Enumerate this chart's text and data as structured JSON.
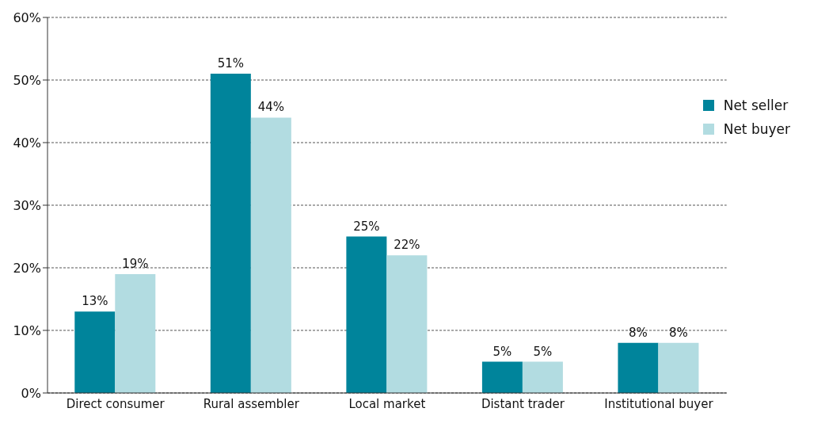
{
  "chart_data": {
    "type": "bar",
    "categories": [
      "Direct consumer",
      "Rural assembler",
      "Local market",
      "Distant trader",
      "Institutional buyer"
    ],
    "series": [
      {
        "name": "Net seller",
        "color": "#00849b",
        "values": [
          13,
          51,
          25,
          5,
          8
        ],
        "value_labels": [
          "13%",
          "51%",
          "25%",
          "5%",
          "8%"
        ]
      },
      {
        "name": "Net buyer",
        "color": "#b2dce1",
        "values": [
          19,
          44,
          22,
          5,
          8
        ],
        "value_labels": [
          "19%",
          "44%",
          "22%",
          "5%",
          "8%"
        ]
      }
    ],
    "ylim": [
      0,
      60
    ],
    "yticks": [
      {
        "value": 0,
        "label": "0%"
      },
      {
        "value": 10,
        "label": "10%"
      },
      {
        "value": 20,
        "label": "20%"
      },
      {
        "value": 30,
        "label": "30%"
      },
      {
        "value": 40,
        "label": "40%"
      },
      {
        "value": 50,
        "label": "50%"
      },
      {
        "value": 60,
        "label": "60%"
      }
    ],
    "grid": "y",
    "legend": "top right"
  }
}
